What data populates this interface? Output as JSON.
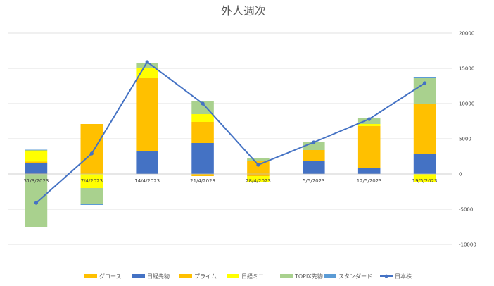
{
  "chart_data": {
    "type": "bar",
    "stacked": true,
    "title": "外人週次",
    "xlabel": "",
    "ylabel": "",
    "categories": [
      "31/3/2023",
      "7/4/2023",
      "14/4/2023",
      "21/4/2023",
      "28/4/2023",
      "5/5/2023",
      "12/5/2023",
      "19/5/2023"
    ],
    "ylim": [
      -10000,
      20000
    ],
    "yticks": [
      20000,
      15000,
      10000,
      5000,
      0,
      -5000,
      -10000
    ],
    "ytick_labels": [
      "20000",
      "15000",
      "10000",
      "5000",
      "0",
      "-5000",
      "-10000"
    ],
    "grid": true,
    "legend_position": "bottom",
    "series": [
      {
        "name": "グロース",
        "kind": "bar",
        "color": "#FFC000",
        "values": [
          50,
          0,
          0,
          -300,
          -300,
          0,
          0,
          0
        ]
      },
      {
        "name": "日経先物",
        "kind": "bar",
        "color": "#4472C4",
        "values": [
          1500,
          0,
          3200,
          4400,
          0,
          1800,
          800,
          2800
        ]
      },
      {
        "name": "プライム",
        "kind": "bar",
        "color": "#FFC000",
        "values": [
          200,
          7100,
          10400,
          3000,
          1800,
          1600,
          6000,
          7100
        ]
      },
      {
        "name": "日経ミニ",
        "kind": "bar",
        "color": "#FFFF00",
        "values": [
          1600,
          -2000,
          1500,
          1100,
          -800,
          0,
          300,
          -1200
        ]
      },
      {
        "name": "TOPIX先物",
        "kind": "bar",
        "color": "#A9D18E",
        "values": [
          -7500,
          -2200,
          600,
          1800,
          400,
          1200,
          900,
          3700
        ]
      },
      {
        "name": "スタンダード",
        "kind": "bar",
        "color": "#5B9BD5",
        "values": [
          100,
          -200,
          100,
          0,
          0,
          0,
          0,
          200
        ]
      },
      {
        "name": "日本株",
        "kind": "line",
        "color": "#4472C4",
        "values": [
          -4100,
          2900,
          15900,
          10000,
          1300,
          4500,
          7800,
          12900
        ]
      }
    ]
  }
}
